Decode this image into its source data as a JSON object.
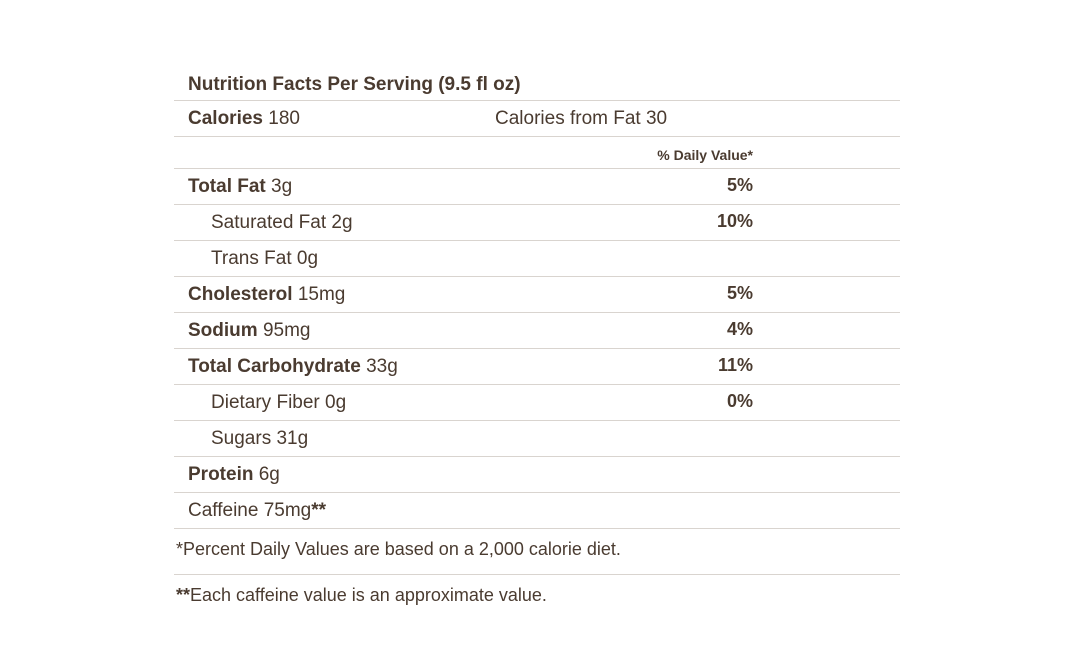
{
  "title": "Nutrition Facts Per Serving (9.5 fl oz)",
  "calories": {
    "label": "Calories",
    "value": "180"
  },
  "calories_from_fat": "Calories from Fat 30",
  "daily_value_header": "% Daily Value*",
  "rows": [
    {
      "label": "Total Fat",
      "amount": "3g",
      "dv": "5%"
    },
    {
      "label": "Saturated Fat",
      "amount": "2g",
      "dv": "10%"
    },
    {
      "label": "Trans Fat",
      "amount": "0g",
      "dv": ""
    },
    {
      "label": "Cholesterol",
      "amount": "15mg",
      "dv": "5%"
    },
    {
      "label": "Sodium",
      "amount": "95mg",
      "dv": "4%"
    },
    {
      "label": "Total Carbohydrate",
      "amount": "33g",
      "dv": "11%"
    },
    {
      "label": "Dietary Fiber",
      "amount": "0g",
      "dv": "0%"
    },
    {
      "label": "Sugars",
      "amount": "31g",
      "dv": ""
    },
    {
      "label": "Protein",
      "amount": "6g",
      "dv": ""
    }
  ],
  "caffeine": {
    "label": "Caffeine 75mg",
    "marker": "**"
  },
  "footnotes": {
    "percent_dv": "*Percent Daily Values are based on a 2,000 calorie diet.",
    "caffeine_marker": "**",
    "caffeine_note": "Each caffeine value is an approximate value."
  }
}
